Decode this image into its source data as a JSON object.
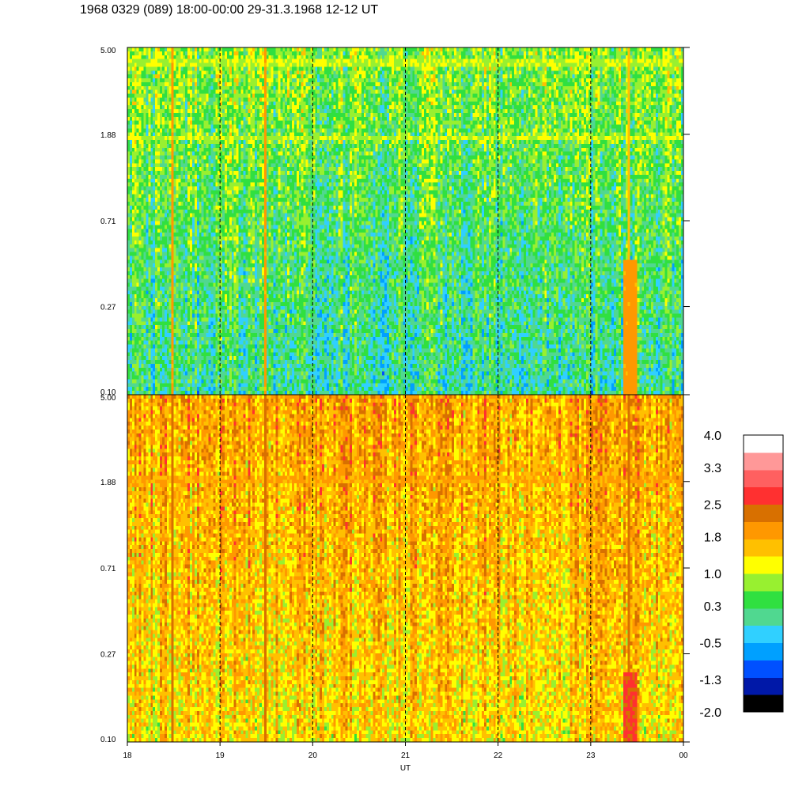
{
  "title": "1968 0329 (089) 18:00-00:00 29-31.3.1968  12-12 UT",
  "chart_data": {
    "type": "heatmap",
    "panels": [
      {
        "id": "upper",
        "y_ticks": [
          "5.00",
          "1.88",
          "0.71",
          "0.27",
          "0.10"
        ],
        "y_scale": "log",
        "ylim": [
          0.1,
          5.0
        ],
        "dominant_level": 0.3,
        "features": [
          {
            "type": "horizontal_band",
            "y": 4.2,
            "level": 1.0
          },
          {
            "type": "horizontal_band",
            "y": 1.8,
            "level": 1.0
          },
          {
            "type": "vertical_streak",
            "x": 18.48,
            "level": 1.8
          },
          {
            "type": "vertical_streak",
            "x": 19.48,
            "level": 1.8
          },
          {
            "type": "vertical_streak",
            "x": 23.42,
            "level": 1.8,
            "y_max": 0.45
          }
        ]
      },
      {
        "id": "lower",
        "y_ticks": [
          "5.00",
          "1.88",
          "0.71",
          "0.27",
          "0.10"
        ],
        "y_scale": "log",
        "ylim": [
          0.1,
          5.0
        ],
        "dominant_level": 1.5,
        "features": [
          {
            "type": "horizontal_band",
            "y": 1.9,
            "level": 1.8
          },
          {
            "type": "vertical_streak",
            "x": 18.48,
            "level": 2.2
          },
          {
            "type": "vertical_streak",
            "x": 19.48,
            "level": 2.2
          },
          {
            "type": "vertical_streak",
            "x": 23.42,
            "level": 2.5,
            "y_max": 0.22
          }
        ]
      }
    ],
    "x_ticks": [
      "18",
      "19",
      "20",
      "21",
      "22",
      "23",
      "00"
    ],
    "xlim": [
      18,
      24
    ],
    "xlabel": "UT",
    "vertical_dashed_lines_at": [
      19,
      20,
      21,
      22,
      23
    ],
    "colorbar": {
      "labels": [
        "4.0",
        "3.3",
        "2.5",
        "1.8",
        "1.0",
        "0.3",
        "-0.5",
        "-1.3",
        "-2.0"
      ],
      "range": [
        -2.0,
        4.0
      ],
      "colors": [
        "#000000",
        "#0018a8",
        "#0050ff",
        "#00a0ff",
        "#30d0ff",
        "#50d890",
        "#30e040",
        "#98f030",
        "#ffff00",
        "#ffc000",
        "#ff9800",
        "#d87000",
        "#ff3030",
        "#ff6060",
        "#ff9898",
        "#ffffff"
      ]
    }
  }
}
